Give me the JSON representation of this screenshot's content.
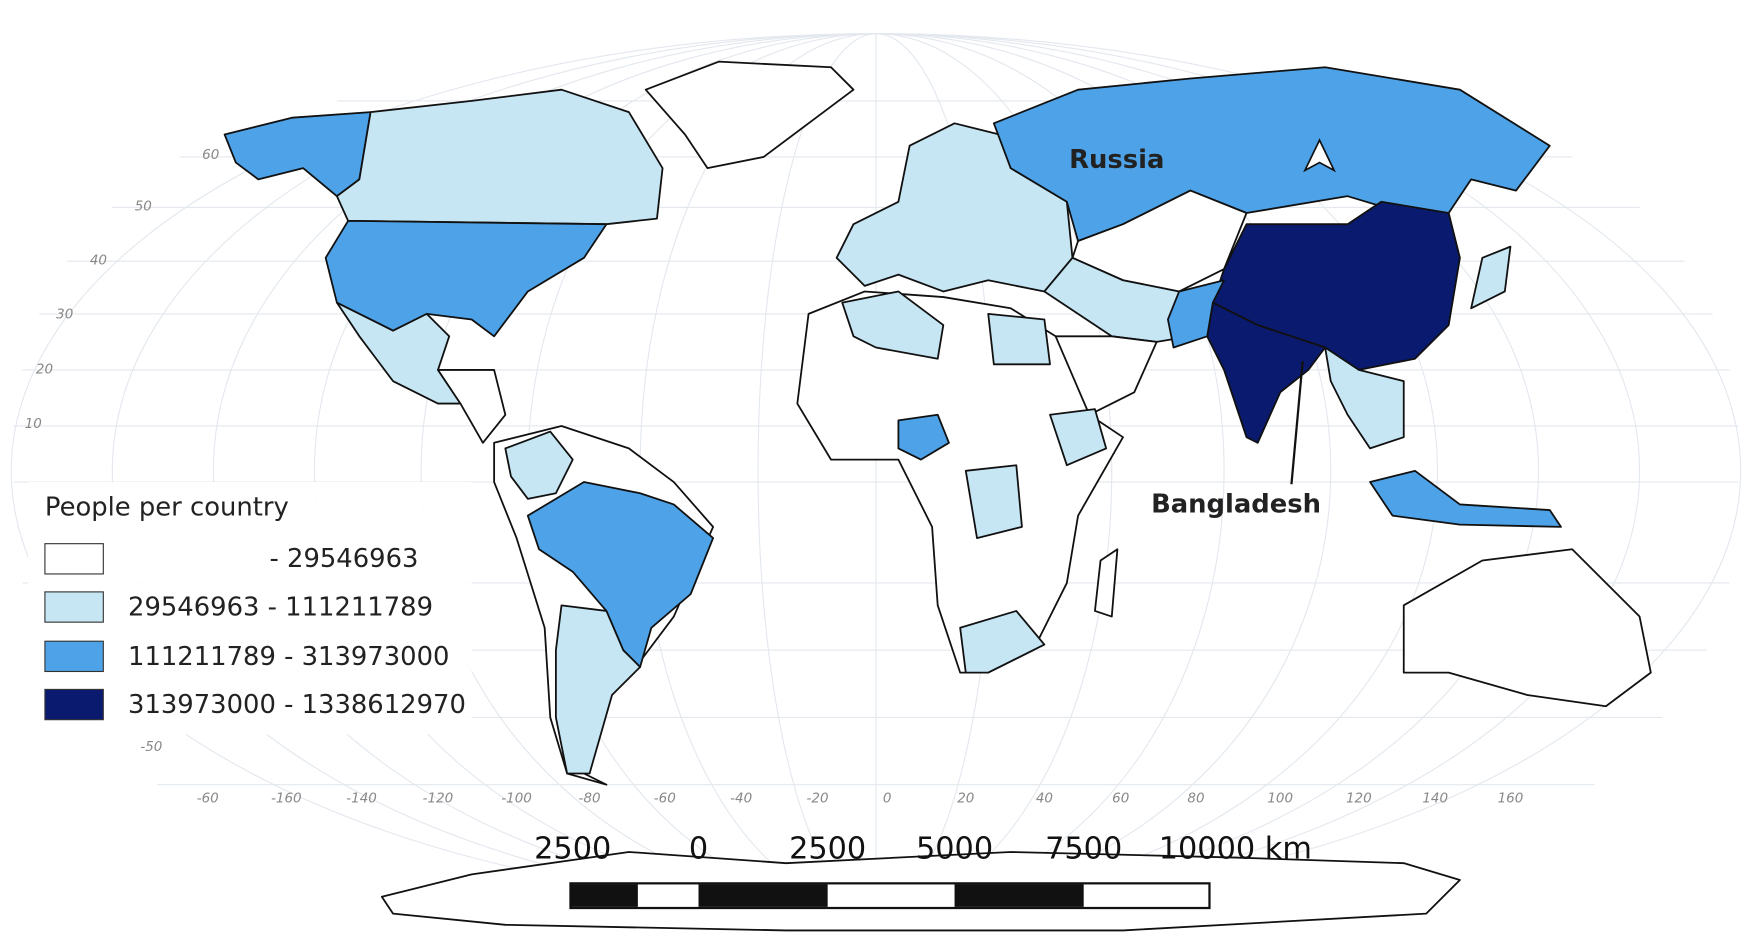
{
  "legend": {
    "title": "People per country",
    "classes": [
      {
        "label": "- 29546963",
        "color": "#ffffff"
      },
      {
        "label": "29546963 - 111211789",
        "color": "#c6e6f4"
      },
      {
        "label": "111211789 - 313973000",
        "color": "#4ea3e8"
      },
      {
        "label": "313973000 - 1338612970",
        "color": "#0a1a6e"
      }
    ]
  },
  "labels": [
    "Russia",
    "Bangladesh"
  ],
  "latitude_labels": [
    "60",
    "50",
    "40",
    "30",
    "20",
    "10",
    "-50"
  ],
  "longitude_labels": [
    "-60",
    "-160",
    "-140",
    "-120",
    "-100",
    "-80",
    "-60",
    "-40",
    "-20",
    "0",
    "20",
    "40",
    "60",
    "80",
    "100",
    "120",
    "140",
    "160"
  ],
  "scale_bar": {
    "labels": [
      "2500",
      "0",
      "2500",
      "5000",
      "7500",
      "10000 km"
    ]
  }
}
